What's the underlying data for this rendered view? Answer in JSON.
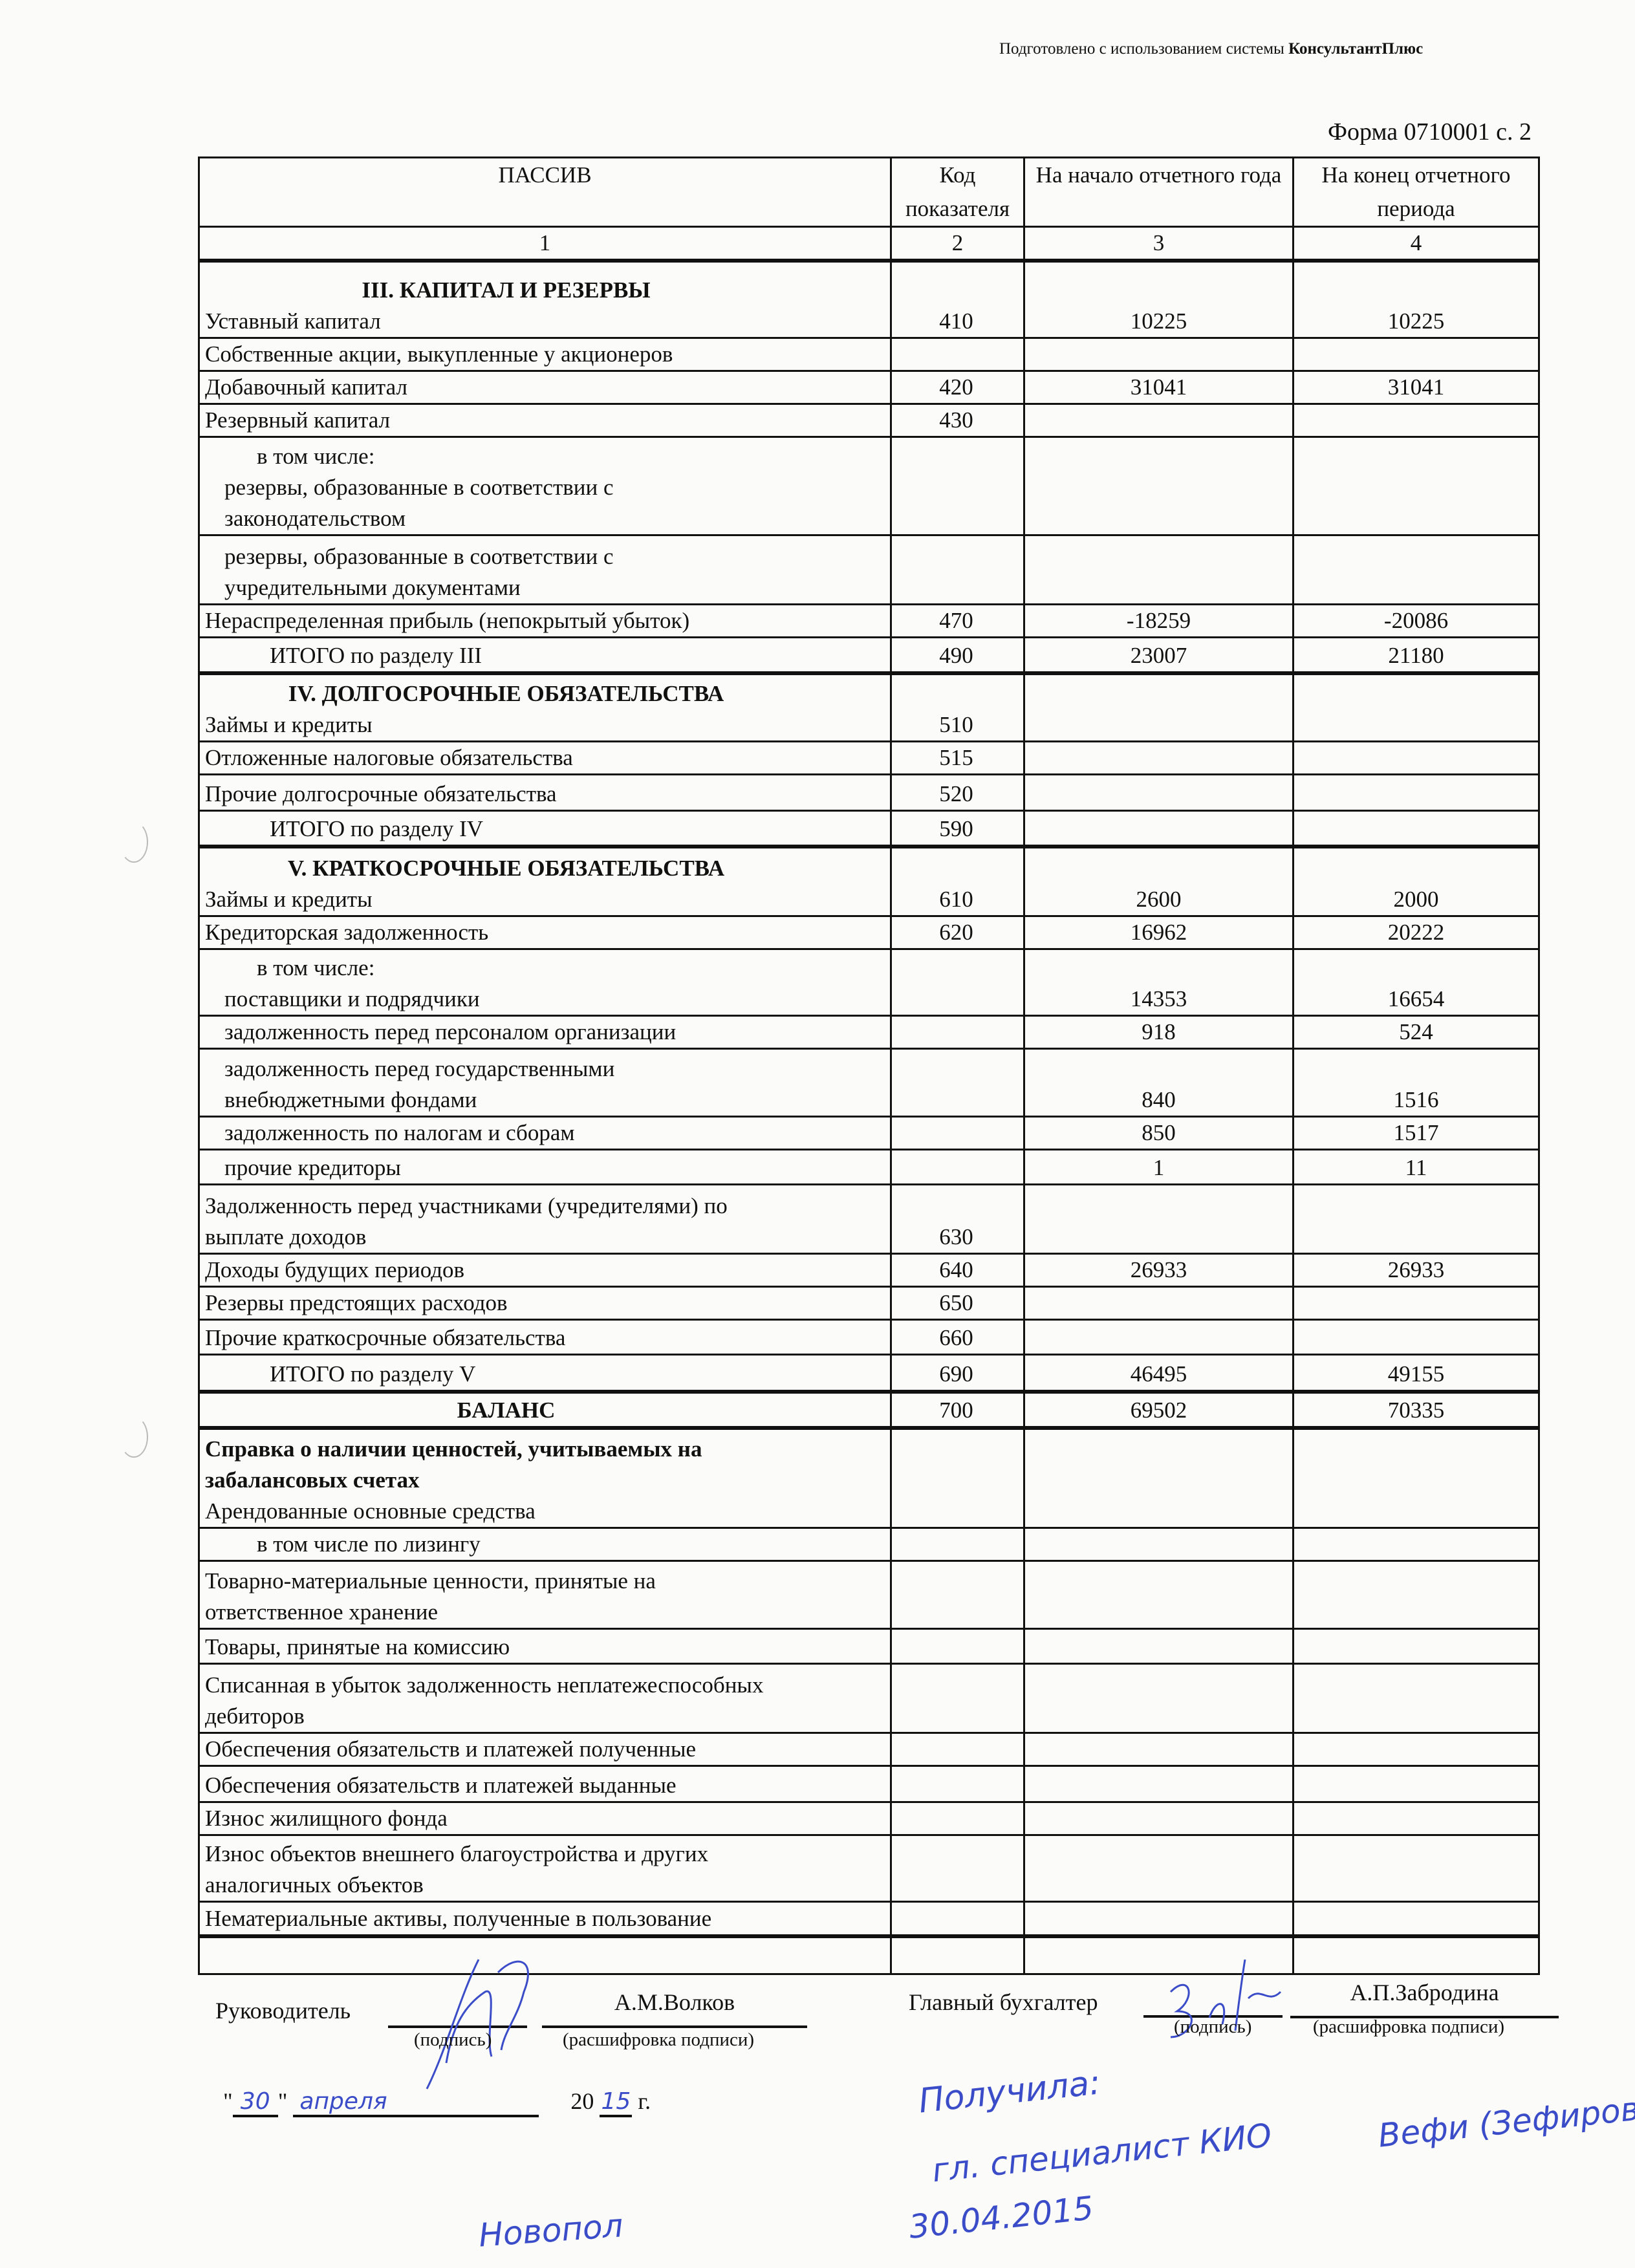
{
  "header": {
    "prepared_prefix": "Подготовлено с использованием системы ",
    "prepared_brand": "КонсультантПлюс",
    "form_label": "Форма 0710001 с. 2"
  },
  "table": {
    "columns": [
      "ПАССИВ",
      "Код показателя",
      "На начало отчетного года",
      "На конец отчетного периода"
    ],
    "column_numbers": [
      "1",
      "2",
      "3",
      "4"
    ],
    "rows": [
      {
        "lines": [
          {
            "t": "III. КАПИТАЛ И РЕЗЕРВЫ",
            "k": "heading"
          },
          {
            "t": "Уставный капитал",
            "k": ""
          }
        ],
        "code": "410",
        "start": "10225",
        "end": "10225"
      },
      {
        "lines": [
          {
            "t": "Собственные акции, выкупленные у акционеров",
            "k": ""
          }
        ],
        "code": "",
        "start": "",
        "end": ""
      },
      {
        "lines": [
          {
            "t": "Добавочный капитал",
            "k": ""
          }
        ],
        "code": "420",
        "start": "31041",
        "end": "31041"
      },
      {
        "lines": [
          {
            "t": "Резервный капитал",
            "k": ""
          }
        ],
        "code": "430",
        "start": "",
        "end": ""
      },
      {
        "lines": [
          {
            "t": "в том числе:",
            "k": "i2"
          },
          {
            "t": "резервы, образованные в соответствии с",
            "k": "i1s"
          },
          {
            "t": "законодательством",
            "k": "i1s"
          }
        ],
        "code": "",
        "start": "",
        "end": ""
      },
      {
        "lines": [
          {
            "t": "резервы, образованные в соответствии с",
            "k": "i1s"
          },
          {
            "t": "учредительными документами",
            "k": "i1s"
          }
        ],
        "code": "",
        "start": "",
        "end": ""
      },
      {
        "lines": [
          {
            "t": "Нераспределенная прибыль (непокрытый убыток)",
            "k": ""
          }
        ],
        "code": "470",
        "start": "-18259",
        "end": "-20086"
      },
      {
        "lines": [
          {
            "t": "ИТОГО по разделу III",
            "k": "i1"
          }
        ],
        "code": "490",
        "start": "23007",
        "end": "21180"
      },
      {
        "lines": [
          {
            "t": "IV. ДОЛГОСРОЧНЫЕ ОБЯЗАТЕЛЬСТВА",
            "k": "heading"
          },
          {
            "t": "Займы и кредиты",
            "k": ""
          }
        ],
        "code": "510",
        "start": "",
        "end": ""
      },
      {
        "lines": [
          {
            "t": "Отложенные налоговые обязательства",
            "k": ""
          }
        ],
        "code": "515",
        "start": "",
        "end": ""
      },
      {
        "lines": [
          {
            "t": "Прочие долгосрочные обязательства",
            "k": ""
          }
        ],
        "code": "520",
        "start": "",
        "end": ""
      },
      {
        "lines": [
          {
            "t": "ИТОГО по разделу IV",
            "k": "i1"
          }
        ],
        "code": "590",
        "start": "",
        "end": ""
      },
      {
        "lines": [
          {
            "t": "V. КРАТКОСРОЧНЫЕ ОБЯЗАТЕЛЬСТВА",
            "k": "heading"
          },
          {
            "t": "Займы и кредиты",
            "k": ""
          }
        ],
        "code": "610",
        "start": "2600",
        "end": "2000"
      },
      {
        "lines": [
          {
            "t": "Кредиторская задолженность",
            "k": ""
          }
        ],
        "code": "620",
        "start": "16962",
        "end": "20222"
      },
      {
        "lines": [
          {
            "t": "в том числе:",
            "k": "i2"
          },
          {
            "t": "поставщики и подрядчики",
            "k": "i1s"
          }
        ],
        "code": "",
        "start": "14353",
        "end": "16654"
      },
      {
        "lines": [
          {
            "t": "задолженность перед персоналом организации",
            "k": "i1s"
          }
        ],
        "code": "",
        "start": "918",
        "end": "524"
      },
      {
        "lines": [
          {
            "t": "задолженность перед государственными",
            "k": "i1s"
          },
          {
            "t": "внебюджетными фондами",
            "k": "i1s"
          }
        ],
        "code": "",
        "start": "840",
        "end": "1516"
      },
      {
        "lines": [
          {
            "t": "задолженность по налогам и сборам",
            "k": "i1s"
          }
        ],
        "code": "",
        "start": "850",
        "end": "1517"
      },
      {
        "lines": [
          {
            "t": "прочие кредиторы",
            "k": "i1s"
          }
        ],
        "code": "",
        "start": "1",
        "end": "11"
      },
      {
        "lines": [
          {
            "t": "Задолженность перед участниками (учредителями) по",
            "k": ""
          },
          {
            "t": "выплате доходов",
            "k": ""
          }
        ],
        "code": "630",
        "start": "",
        "end": ""
      },
      {
        "lines": [
          {
            "t": "Доходы будущих периодов",
            "k": ""
          }
        ],
        "code": "640",
        "start": "26933",
        "end": "26933"
      },
      {
        "lines": [
          {
            "t": "Резервы предстоящих расходов",
            "k": ""
          }
        ],
        "code": "650",
        "start": "",
        "end": ""
      },
      {
        "lines": [
          {
            "t": "Прочие краткосрочные обязательства",
            "k": ""
          }
        ],
        "code": "660",
        "start": "",
        "end": ""
      },
      {
        "lines": [
          {
            "t": "ИТОГО по разделу V",
            "k": "i1"
          }
        ],
        "code": "690",
        "start": "46495",
        "end": "49155"
      },
      {
        "lines": [
          {
            "t": "БАЛАНС",
            "k": "center"
          }
        ],
        "code": "700",
        "start": "69502",
        "end": "70335"
      },
      {
        "lines": [
          {
            "t": "Справка о наличии ценностей, учитываемых на",
            "k": "bold"
          },
          {
            "t": "забалансовых счетах",
            "k": "bold"
          },
          {
            "t": "Арендованные основные средства",
            "k": ""
          }
        ],
        "code": "",
        "start": "",
        "end": ""
      },
      {
        "lines": [
          {
            "t": "в том числе по лизингу",
            "k": "i2"
          }
        ],
        "code": "",
        "start": "",
        "end": ""
      },
      {
        "lines": [
          {
            "t": "Товарно-материальные ценности, принятые на",
            "k": ""
          },
          {
            "t": "ответственное хранение",
            "k": ""
          }
        ],
        "code": "",
        "start": "",
        "end": ""
      },
      {
        "lines": [
          {
            "t": "Товары, принятые на комиссию",
            "k": ""
          }
        ],
        "code": "",
        "start": "",
        "end": ""
      },
      {
        "lines": [
          {
            "t": "Списанная в убыток задолженность неплатежеспособных",
            "k": ""
          },
          {
            "t": "дебиторов",
            "k": ""
          }
        ],
        "code": "",
        "start": "",
        "end": ""
      },
      {
        "lines": [
          {
            "t": "Обеспечения обязательств и платежей полученные",
            "k": ""
          }
        ],
        "code": "",
        "start": "",
        "end": ""
      },
      {
        "lines": [
          {
            "t": "Обеспечения обязательств и платежей выданные",
            "k": ""
          }
        ],
        "code": "",
        "start": "",
        "end": ""
      },
      {
        "lines": [
          {
            "t": "Износ жилищного фонда",
            "k": ""
          }
        ],
        "code": "",
        "start": "",
        "end": ""
      },
      {
        "lines": [
          {
            "t": "Износ объектов внешнего благоустройства и других",
            "k": ""
          },
          {
            "t": "аналогичных объектов",
            "k": ""
          }
        ],
        "code": "",
        "start": "",
        "end": ""
      },
      {
        "lines": [
          {
            "t": "Нематериальные активы, полученные в пользование",
            "k": ""
          }
        ],
        "code": "",
        "start": "",
        "end": ""
      },
      {
        "lines": [
          {
            "t": "",
            "k": ""
          }
        ],
        "code": "",
        "start": "",
        "end": ""
      }
    ]
  },
  "signatures": {
    "head_label": "Руководитель",
    "head_name": "А.М.Волков",
    "accountant_label": "Главный бухгалтер",
    "accountant_name": "А.П.Забродина",
    "signature_caption": "(подпись)",
    "decode_caption": "(расшифровка подписи)",
    "date_day": "30",
    "date_month": "апреля",
    "date_century": "20",
    "date_year": "15",
    "date_suffix": "г."
  },
  "handwritten": {
    "received": "Получила:",
    "received_by": "гл. специалист КИО",
    "received_name": "Вефи (Зефирова)",
    "received_date": "30.04.2015",
    "bottom_name": "Новопол"
  },
  "colors": {
    "ink": "#111111",
    "pen": "#3a4cc8",
    "paper": "#fbfbf9"
  }
}
